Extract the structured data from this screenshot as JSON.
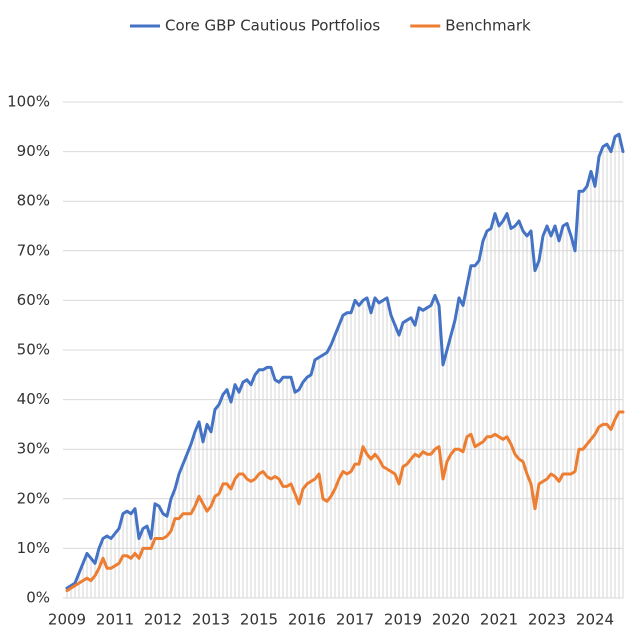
{
  "chart_data": {
    "type": "line",
    "categories": [
      "2009",
      null,
      null,
      null,
      null,
      null,
      null,
      null,
      null,
      null,
      null,
      null,
      "2011",
      null,
      null,
      null,
      null,
      null,
      null,
      null,
      null,
      null,
      null,
      null,
      "2012",
      null,
      null,
      null,
      null,
      null,
      null,
      null,
      null,
      null,
      null,
      null,
      "2013",
      null,
      null,
      null,
      null,
      null,
      null,
      null,
      null,
      null,
      null,
      null,
      "2015",
      null,
      null,
      null,
      null,
      null,
      null,
      null,
      null,
      null,
      null,
      null,
      "2016",
      null,
      null,
      null,
      null,
      null,
      null,
      null,
      null,
      null,
      null,
      null,
      "2017",
      null,
      null,
      null,
      null,
      null,
      null,
      null,
      null,
      null,
      null,
      null,
      "2019",
      null,
      null,
      null,
      null,
      null,
      null,
      null,
      null,
      null,
      null,
      null,
      "2020",
      null,
      null,
      null,
      null,
      null,
      null,
      null,
      null,
      null,
      null,
      null,
      "2021",
      null,
      null,
      null,
      null,
      null,
      null,
      null,
      null,
      null,
      null,
      null,
      "2023",
      null,
      null,
      null,
      null,
      null,
      null,
      null,
      null,
      null,
      null,
      null,
      "2024",
      null,
      null,
      null,
      null,
      null,
      null,
      null
    ],
    "series": [
      {
        "name": "Core GBP Cautious Portfolios",
        "color": "#4472c4",
        "values": [
          2,
          2.5,
          3,
          5,
          7,
          9,
          8,
          7,
          10,
          12,
          12.5,
          12,
          13,
          14,
          17,
          17.5,
          17,
          18,
          12,
          14,
          14.5,
          12,
          19,
          18.5,
          17,
          16.5,
          20,
          22,
          25,
          27,
          29,
          31,
          33.5,
          35.5,
          31.5,
          35,
          33.5,
          38,
          39,
          41,
          42,
          39.5,
          43,
          41.5,
          43.5,
          44,
          43,
          45,
          46,
          46,
          46.5,
          46.5,
          44,
          43.5,
          44.5,
          44.5,
          44.5,
          41.5,
          42,
          43.5,
          44.5,
          45,
          48,
          48.5,
          49,
          49.5,
          51,
          53,
          55,
          57,
          57.5,
          57.5,
          60,
          59,
          60,
          60.5,
          57.5,
          60.5,
          59.5,
          60,
          60.5,
          57,
          55,
          53,
          55.5,
          56,
          56.5,
          55,
          58.5,
          58,
          58.5,
          59,
          61,
          59,
          47,
          50,
          53,
          56,
          60.5,
          59,
          63,
          67,
          67,
          68,
          72,
          74,
          74.5,
          77.5,
          75,
          76,
          77.5,
          74.5,
          75,
          76,
          74,
          73,
          74,
          66,
          68,
          73,
          75,
          73,
          75,
          72,
          75,
          75.5,
          73,
          70,
          82,
          82,
          83,
          86,
          83,
          89,
          91,
          91.5,
          90,
          93,
          93.5,
          90
        ]
      },
      {
        "name": "Benchmark",
        "color": "#ed7d31",
        "values": [
          1.5,
          2,
          2.5,
          3,
          3.5,
          4,
          3.5,
          4.5,
          6,
          8,
          6,
          6,
          6.5,
          7,
          8.5,
          8.5,
          8,
          9,
          8,
          10,
          10,
          10,
          12,
          12,
          12,
          12.5,
          13.5,
          16,
          16,
          17,
          17,
          17,
          18.5,
          20.5,
          19,
          17.5,
          18.5,
          20.5,
          21,
          23,
          23,
          22,
          24,
          25,
          25,
          24,
          23.5,
          24,
          25,
          25.5,
          24.5,
          24,
          24.5,
          24,
          22.5,
          22.5,
          23,
          21,
          19,
          22,
          23,
          23.5,
          24,
          25,
          20,
          19.5,
          20.5,
          22,
          24,
          25.5,
          25,
          25.5,
          27,
          27,
          30.5,
          29,
          28,
          29,
          28,
          26.5,
          26,
          25.5,
          25,
          23,
          26.5,
          27,
          28,
          29,
          28.5,
          29.5,
          29,
          29,
          30,
          30.5,
          24,
          27.5,
          29,
          30,
          30,
          29.5,
          32.5,
          33,
          30.5,
          31,
          31.5,
          32.5,
          32.5,
          33,
          32.5,
          32,
          32.5,
          31,
          29,
          28,
          27.5,
          25,
          23,
          18,
          23,
          23.5,
          24,
          25,
          24.5,
          23.5,
          25,
          25,
          25,
          25.5,
          30,
          30,
          31,
          32,
          33,
          34.5,
          35,
          35,
          34,
          36,
          37.5,
          37.5
        ]
      }
    ],
    "ylim": [
      0,
      100
    ],
    "yticks": [
      {
        "value": 0,
        "label": "0%"
      },
      {
        "value": 10,
        "label": "10%"
      },
      {
        "value": 20,
        "label": "20%"
      },
      {
        "value": 30,
        "label": "30%"
      },
      {
        "value": 40,
        "label": "40%"
      },
      {
        "value": 50,
        "label": "50%"
      },
      {
        "value": 60,
        "label": "60%"
      },
      {
        "value": 70,
        "label": "70%"
      },
      {
        "value": 80,
        "label": "80%"
      },
      {
        "value": 90,
        "label": "90%"
      },
      {
        "value": 100,
        "label": "100%"
      }
    ],
    "grid": true
  }
}
